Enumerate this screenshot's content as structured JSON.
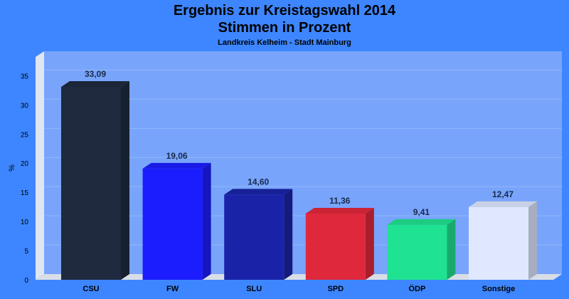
{
  "chart_data": {
    "type": "bar",
    "title": "Ergebnis zur Kreistagswahl 2014",
    "title2": "Stimmen in Prozent",
    "subtitle": "Landkreis Kelheim - Stadt Mainburg",
    "ylabel": "%",
    "ylim": [
      0,
      37
    ],
    "yticks": [
      0,
      5,
      10,
      15,
      20,
      25,
      30,
      35
    ],
    "categories": [
      "CSU",
      "FW",
      "SLU",
      "SPD",
      "ÖDP",
      "Sonstige"
    ],
    "values": [
      33.09,
      19.06,
      14.6,
      11.36,
      9.41,
      12.47
    ],
    "value_labels": [
      "33,09",
      "19,06",
      "14,60",
      "11,36",
      "9,41",
      "12,47"
    ],
    "colors": [
      "#1f2a3e",
      "#1c1dff",
      "#1a23a8",
      "#e0283c",
      "#1fe392",
      "#dfe8ff"
    ],
    "grid": true
  }
}
